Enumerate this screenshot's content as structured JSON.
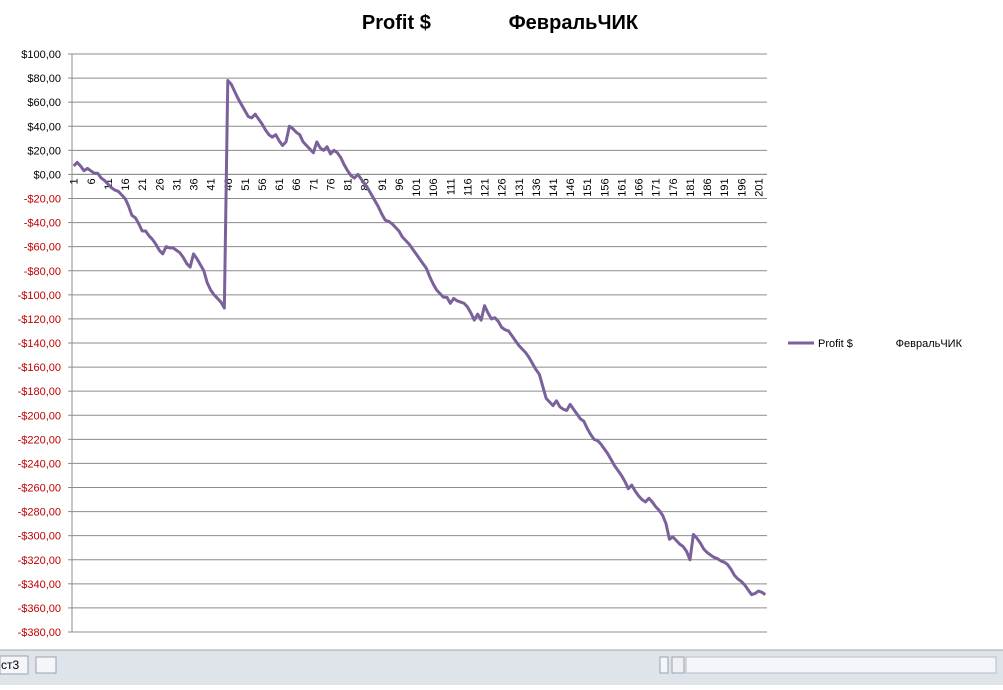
{
  "chart_data": {
    "type": "line",
    "title": "Profit $              ФевральЧИК",
    "categories": [
      1,
      null,
      null,
      null,
      null,
      6,
      null,
      null,
      null,
      null,
      11,
      null,
      null,
      null,
      null,
      16,
      null,
      null,
      null,
      null,
      21,
      null,
      null,
      null,
      null,
      26,
      null,
      null,
      null,
      null,
      31,
      null,
      null,
      null,
      null,
      36,
      null,
      null,
      null,
      null,
      41,
      null,
      null,
      null,
      null,
      46,
      null,
      null,
      null,
      null,
      51,
      null,
      null,
      null,
      null,
      56,
      null,
      null,
      null,
      null,
      61,
      null,
      null,
      null,
      null,
      66,
      null,
      null,
      null,
      null,
      71,
      null,
      null,
      null,
      null,
      76,
      null,
      null,
      null,
      null,
      81,
      null,
      null,
      null,
      null,
      86,
      null,
      null,
      null,
      null,
      91,
      null,
      null,
      null,
      null,
      96,
      null,
      null,
      null,
      null,
      101,
      null,
      null,
      null,
      null,
      106,
      null,
      null,
      null,
      null,
      111,
      null,
      null,
      null,
      null,
      116,
      null,
      null,
      null,
      null,
      121,
      null,
      null,
      null,
      null,
      126,
      null,
      null,
      null,
      null,
      131,
      null,
      null,
      null,
      null,
      136,
      null,
      null,
      null,
      null,
      141,
      null,
      null,
      null,
      null,
      146,
      null,
      null,
      null,
      null,
      151,
      null,
      null,
      null,
      null,
      156,
      null,
      null,
      null,
      null,
      161,
      null,
      null,
      null,
      null,
      166,
      null,
      null,
      null,
      null,
      171,
      null,
      null,
      null,
      null,
      176,
      null,
      null,
      null,
      null,
      181,
      null,
      null,
      null,
      null,
      186,
      null,
      null,
      null,
      null,
      191,
      null,
      null,
      null,
      null,
      196,
      null,
      null,
      null,
      null,
      201,
      null,
      null
    ],
    "series": [
      {
        "name": "Profit $              ФевральЧИК",
        "color": "#7b619c",
        "values": [
          7,
          10,
          7,
          3,
          5,
          3,
          1,
          1,
          -3,
          -5,
          -8,
          -11,
          -13,
          -14,
          -17,
          -20,
          -26,
          -34,
          -36,
          -41,
          -47,
          -47,
          -51,
          -54,
          -58,
          -63,
          -66,
          -60,
          -61,
          -61,
          -63,
          -65,
          -69,
          -74,
          -77,
          -66,
          -70,
          -75,
          -80,
          -90,
          -96,
          -100,
          -103,
          -106,
          -111,
          78,
          75,
          69,
          63,
          58,
          53,
          48,
          47,
          50,
          46,
          42,
          37,
          33,
          31,
          33,
          28,
          24,
          27,
          40,
          38,
          35,
          33,
          27,
          24,
          21,
          18,
          27,
          22,
          20,
          23,
          17,
          20,
          18,
          14,
          8,
          3,
          -1,
          -3,
          0,
          -4,
          -8,
          -12,
          -17,
          -22,
          -27,
          -33,
          -38,
          -39,
          -41,
          -44,
          -47,
          -52,
          -55,
          -58,
          -62,
          -66,
          -70,
          -74,
          -78,
          -85,
          -91,
          -96,
          -99,
          -102,
          -102,
          -107,
          -103,
          -105,
          -106,
          -107,
          -110,
          -115,
          -121,
          -116,
          -121,
          -109,
          -115,
          -120,
          -119,
          -122,
          -127,
          -129,
          -130,
          -134,
          -138,
          -142,
          -145,
          -148,
          -152,
          -157,
          -162,
          -166,
          -176,
          -186,
          -189,
          -192,
          -188,
          -193,
          -195,
          -196,
          -191,
          -195,
          -199,
          -203,
          -205,
          -211,
          -216,
          -220,
          -221,
          -224,
          -228,
          -232,
          -237,
          -242,
          -246,
          -250,
          -255,
          -261,
          -258,
          -263,
          -267,
          -270,
          -272,
          -269,
          -272,
          -276,
          -279,
          -283,
          -290,
          -303,
          -301,
          -304,
          -307,
          -309,
          -313,
          -320,
          -299,
          -302,
          -306,
          -311,
          -314,
          -316,
          -318,
          -319,
          -321,
          -322,
          -324,
          -328,
          -333,
          -336,
          -338,
          -341,
          -345,
          -349,
          -348,
          -346,
          -347,
          -349
        ]
      }
    ],
    "ylim": [
      -380,
      100
    ],
    "yticks": [
      {
        "value": 100,
        "label": "$100,00"
      },
      {
        "value": 80,
        "label": "$80,00"
      },
      {
        "value": 60,
        "label": "$60,00"
      },
      {
        "value": 40,
        "label": "$40,00"
      },
      {
        "value": 20,
        "label": "$20,00"
      },
      {
        "value": 0,
        "label": "$0,00"
      },
      {
        "value": -20,
        "label": "-$20,00"
      },
      {
        "value": -40,
        "label": "-$40,00"
      },
      {
        "value": -60,
        "label": "-$60,00"
      },
      {
        "value": -80,
        "label": "-$80,00"
      },
      {
        "value": -100,
        "label": "-$100,00"
      },
      {
        "value": -120,
        "label": "-$120,00"
      },
      {
        "value": -140,
        "label": "-$140,00"
      },
      {
        "value": -160,
        "label": "-$160,00"
      },
      {
        "value": -180,
        "label": "-$180,00"
      },
      {
        "value": -200,
        "label": "-$200,00"
      },
      {
        "value": -220,
        "label": "-$220,00"
      },
      {
        "value": -240,
        "label": "-$240,00"
      },
      {
        "value": -260,
        "label": "-$260,00"
      },
      {
        "value": -280,
        "label": "-$280,00"
      },
      {
        "value": -300,
        "label": "-$300,00"
      },
      {
        "value": -320,
        "label": "-$320,00"
      },
      {
        "value": -340,
        "label": "-$340,00"
      },
      {
        "value": -360,
        "label": "-$360,00"
      },
      {
        "value": -380,
        "label": "-$380,00"
      }
    ],
    "negative_tick_color": "#c00000",
    "grid": true,
    "legend": "right"
  },
  "ui": {
    "sheet_tab": "ст3"
  }
}
